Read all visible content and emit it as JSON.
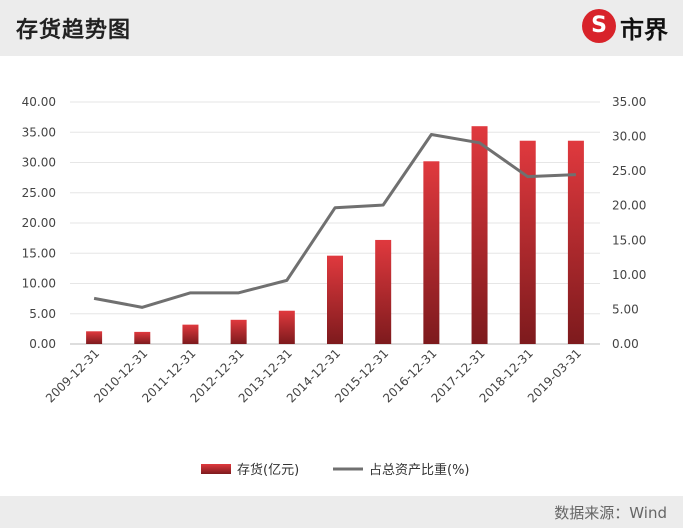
{
  "header": {
    "title": "存货趋势图",
    "logo_text": "市界",
    "logo_mark": "S"
  },
  "footer": {
    "source": "数据来源：Wind"
  },
  "colors": {
    "bar": "#c8282d",
    "line": "#707070",
    "header_bg": "#ececec",
    "brand": "#d8232a"
  },
  "chart_data": {
    "type": "bar+line",
    "title": "存货趋势图",
    "categories": [
      "2009-12-31",
      "2010-12-31",
      "2011-12-31",
      "2012-12-31",
      "2013-12-31",
      "2014-12-31",
      "2015-12-31",
      "2016-12-31",
      "2017-12-31",
      "2018-12-31",
      "2019-03-31"
    ],
    "series": [
      {
        "name": "存货(亿元)",
        "type": "bar",
        "axis": "left",
        "values": [
          2.1,
          2.0,
          3.2,
          4.0,
          5.5,
          14.6,
          17.2,
          30.2,
          36.0,
          33.6,
          33.6
        ]
      },
      {
        "name": "占总资产比重(%)",
        "type": "line",
        "axis": "right",
        "values": [
          6.6,
          5.3,
          7.4,
          7.4,
          9.2,
          19.7,
          20.1,
          30.3,
          29.1,
          24.2,
          24.5
        ]
      }
    ],
    "y_left": {
      "min": 0,
      "max": 40,
      "step": 5,
      "ticks": [
        "0.00",
        "5.00",
        "10.00",
        "15.00",
        "20.00",
        "25.00",
        "30.00",
        "35.00",
        "40.00"
      ]
    },
    "y_right": {
      "min": 0,
      "max": 35,
      "step": 5,
      "ticks": [
        "0.00",
        "5.00",
        "10.00",
        "15.00",
        "20.00",
        "25.00",
        "30.00",
        "35.00"
      ]
    },
    "legend": [
      "存货(亿元)",
      "占总资产比重(%)"
    ],
    "legend_position": "bottom"
  }
}
